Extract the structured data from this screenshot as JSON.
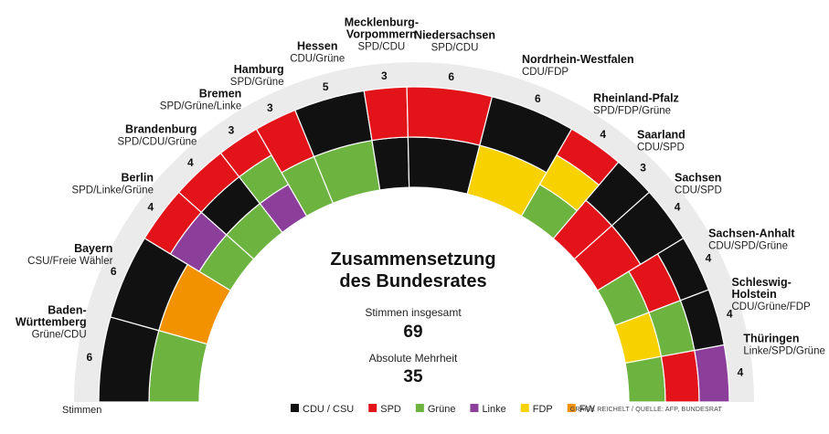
{
  "chart_data": {
    "type": "parliament-arc",
    "title_lines": [
      "Zusammensetzung",
      "des Bundesrates"
    ],
    "total_label": "Stimmen insgesamt",
    "total_value": "69",
    "majority_label": "Absolute Mehrheit",
    "majority_value": "35",
    "stimmen_label": "Stimmen",
    "source_note": "GRAFIK REICHELT / QUELLE: AFP, BUNDESRAT",
    "colors": {
      "CDU / CSU": "#111111",
      "SPD": "#e3131a",
      "Grüne": "#6cb33f",
      "Linke": "#8b3f9b",
      "FDP": "#f7d100",
      "FW": "#f39200"
    },
    "legend": [
      "CDU / CSU",
      "SPD",
      "Grüne",
      "Linke",
      "FDP",
      "FW"
    ],
    "states": [
      {
        "name": [
          "Baden-",
          "Württemberg"
        ],
        "coalition": "Grüne/CDU",
        "votes": "6",
        "inner": "Grüne",
        "outer": "CDU / CSU"
      },
      {
        "name": [
          "Bayern"
        ],
        "coalition": "CSU/Freie Wähler",
        "votes": "6",
        "inner": "FW",
        "outer": "CDU / CSU"
      },
      {
        "name": [
          "Berlin"
        ],
        "coalition": "SPD/Linke/Grüne",
        "votes": "4",
        "inner": "Grüne",
        "middle": "Linke",
        "outer": "SPD"
      },
      {
        "name": [
          "Brandenburg"
        ],
        "coalition": "SPD/CDU/Grüne",
        "votes": "4",
        "inner": "Grüne",
        "middle": "CDU / CSU",
        "outer": "SPD"
      },
      {
        "name": [
          "Bremen"
        ],
        "coalition": "SPD/Grüne/Linke",
        "votes": "3",
        "inner": "Linke",
        "middle": "Grüne",
        "outer": "SPD"
      },
      {
        "name": [
          "Hamburg"
        ],
        "coalition": "SPD/Grüne",
        "votes": "3",
        "inner": "Grüne",
        "outer": "SPD"
      },
      {
        "name": [
          "Hessen"
        ],
        "coalition": "CDU/Grüne",
        "votes": "5",
        "inner": "Grüne",
        "outer": "CDU / CSU"
      },
      {
        "name": [
          "Mecklenburg-",
          "Vorpommern"
        ],
        "coalition": "SPD/CDU",
        "votes": "3",
        "inner": "CDU / CSU",
        "outer": "SPD"
      },
      {
        "name": [
          "Niedersachsen"
        ],
        "coalition": "SPD/CDU",
        "votes": "6",
        "inner": "CDU / CSU",
        "outer": "SPD"
      },
      {
        "name": [
          "Nordrhein-Westfalen"
        ],
        "coalition": "CDU/FDP",
        "votes": "6",
        "inner": "FDP",
        "outer": "CDU / CSU"
      },
      {
        "name": [
          "Rheinland-Pfalz"
        ],
        "coalition": "SPD/FDP/Grüne",
        "votes": "4",
        "inner": "Grüne",
        "middle": "FDP",
        "outer": "SPD"
      },
      {
        "name": [
          "Saarland"
        ],
        "coalition": "CDU/SPD",
        "votes": "3",
        "inner": "SPD",
        "outer": "CDU / CSU"
      },
      {
        "name": [
          "Sachsen"
        ],
        "coalition": "CDU/SPD",
        "votes": "4",
        "inner": "SPD",
        "outer": "CDU / CSU"
      },
      {
        "name": [
          "Sachsen-Anhalt"
        ],
        "coalition": "CDU/SPD/Grüne",
        "votes": "4",
        "inner": "Grüne",
        "middle": "SPD",
        "outer": "CDU / CSU"
      },
      {
        "name": [
          "Schleswig-",
          "Holstein"
        ],
        "coalition": "CDU/Grüne/FDP",
        "votes": "4",
        "inner": "FDP",
        "middle": "Grüne",
        "outer": "CDU / CSU"
      },
      {
        "name": [
          "Thüringen"
        ],
        "coalition": "Linke/SPD/Grüne",
        "votes": "4",
        "inner": "Grüne",
        "middle": "SPD",
        "outer": "Linke"
      }
    ]
  }
}
